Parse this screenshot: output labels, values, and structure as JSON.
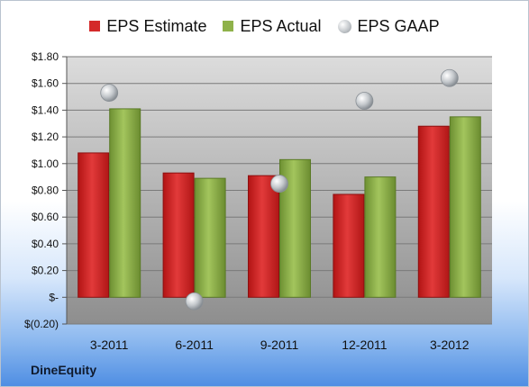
{
  "chart_data": {
    "type": "bar",
    "categories": [
      "3-2011",
      "6-2011",
      "9-2011",
      "12-2011",
      "3-2012"
    ],
    "series": [
      {
        "name": "EPS Estimate",
        "kind": "bar",
        "color": "#d42a2a",
        "values": [
          1.08,
          0.93,
          0.91,
          0.77,
          1.28
        ]
      },
      {
        "name": "EPS Actual",
        "kind": "bar",
        "color": "#8fb24a",
        "values": [
          1.41,
          0.89,
          1.03,
          0.9,
          1.35
        ]
      },
      {
        "name": "EPS GAAP",
        "kind": "marker",
        "color": "#c4c8cc",
        "values": [
          1.53,
          -0.03,
          0.85,
          1.47,
          1.64
        ]
      }
    ],
    "ylim": [
      -0.2,
      1.8
    ],
    "yticks": [
      -0.2,
      0,
      0.2,
      0.4,
      0.6,
      0.8,
      1.0,
      1.2,
      1.4,
      1.6,
      1.8
    ],
    "ytick_labels": [
      "$(0.20)",
      "$-",
      "$0.20",
      "$0.40",
      "$0.60",
      "$0.80",
      "$1.00",
      "$1.20",
      "$1.40",
      "$1.60",
      "$1.80"
    ],
    "grid": true,
    "legend_position": "top-center"
  },
  "footer": {
    "company": "DineEquity"
  }
}
